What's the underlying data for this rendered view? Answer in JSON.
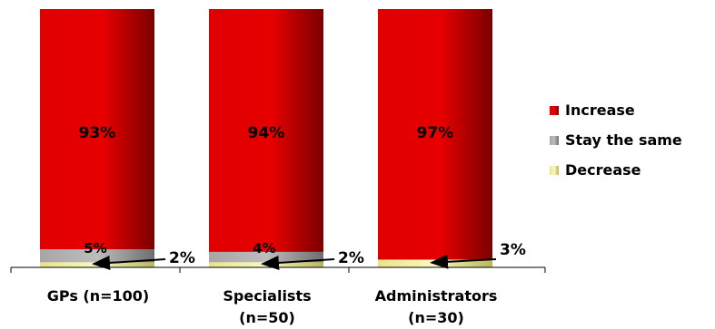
{
  "chart_data": {
    "type": "bar",
    "stacked": true,
    "percent": true,
    "categories": [
      [
        "GPs (n=100)"
      ],
      [
        "Specialists",
        "(n=50)"
      ],
      [
        "Administrators",
        "(n=30)"
      ]
    ],
    "series": [
      {
        "name": "Decrease",
        "values": [
          2,
          2,
          3
        ],
        "color": "#f2ef9a"
      },
      {
        "name": "Stay the same",
        "values": [
          5,
          4,
          0
        ],
        "color": "#9a9a9a"
      },
      {
        "name": "Increase",
        "values": [
          93,
          94,
          97
        ],
        "color": "#e80000"
      }
    ],
    "labels": {
      "increase": [
        "93%",
        "94%",
        "97%"
      ],
      "stay": [
        "5%",
        "4%",
        ""
      ],
      "decrease": [
        "2%",
        "2%",
        "3%"
      ]
    },
    "legend": {
      "position": "right",
      "items": [
        {
          "name": "Increase",
          "color": "#e80000"
        },
        {
          "name": "Stay the same",
          "color": "#9a9a9a"
        },
        {
          "name": "Decrease",
          "color": "#f2ef9a"
        }
      ]
    },
    "ylim": [
      0,
      100
    ],
    "grid": false
  }
}
